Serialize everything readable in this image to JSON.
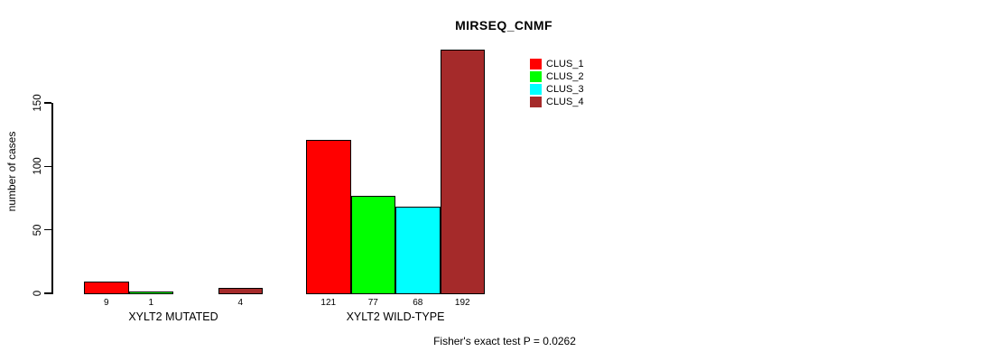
{
  "title": "MIRSEQ_CNMF",
  "footer": "Fisher's exact test P = 0.0262",
  "chart_data": {
    "type": "bar",
    "title": "MIRSEQ_CNMF",
    "xlabel": "",
    "ylabel": "number of cases",
    "categories": [
      "XYLT2 MUTATED",
      "XYLT2 WILD-TYPE"
    ],
    "series": [
      {
        "name": "CLUS_1",
        "color": "#FF0000",
        "values": [
          9,
          121
        ]
      },
      {
        "name": "CLUS_2",
        "color": "#00FF00",
        "values": [
          1,
          77
        ]
      },
      {
        "name": "CLUS_3",
        "color": "#00FFFF",
        "values": [
          0,
          68
        ]
      },
      {
        "name": "CLUS_4",
        "color": "#A52A2A",
        "values": [
          4,
          192
        ]
      }
    ],
    "bar_value_labels": [
      [
        "9",
        "1",
        "",
        "4"
      ],
      [
        "121",
        "77",
        "68",
        "192"
      ]
    ],
    "y_ticks": [
      0,
      50,
      100,
      150
    ],
    "ylim": [
      0,
      192
    ],
    "grid": false,
    "legend_position": "top-right",
    "annotation": "Fisher's exact test P = 0.0262",
    "bar_border_color": "#000000"
  }
}
